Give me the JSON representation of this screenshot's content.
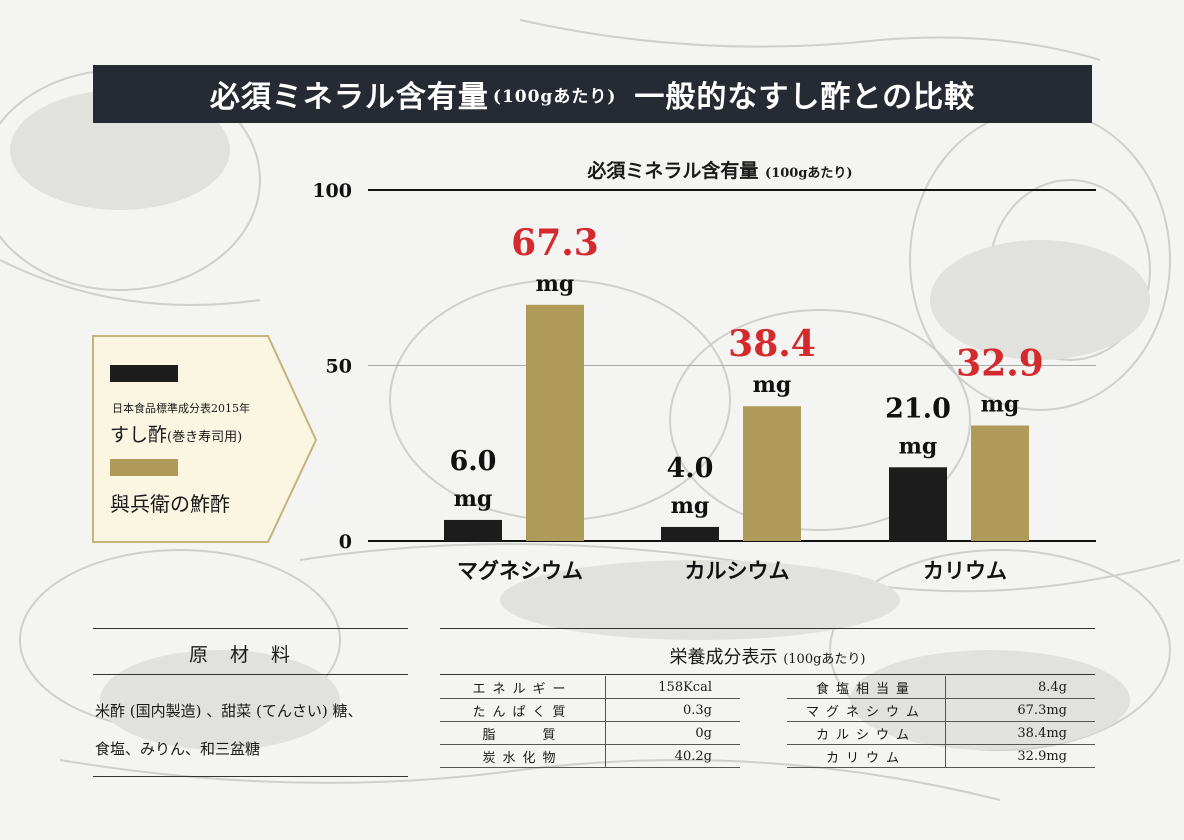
{
  "header": {
    "title_main": "必須ミネラル含有量",
    "title_unit": "(100gあたり)",
    "title_compare": "一般的なすし酢との比較"
  },
  "legend": {
    "series_a_source": "日本食品標準成分表2015年",
    "series_a_name": "すし酢",
    "series_a_note": "(巻き寿司用)",
    "series_b_name": "與兵衛の鮓酢",
    "colors": {
      "series_a": "#1c1c1c",
      "series_b": "#b09a5a",
      "highlight": "#d42a2e"
    }
  },
  "chart_data": {
    "type": "bar",
    "title": "必須ミネラル含有量",
    "title_unit": "(100gあたり)",
    "categories": [
      "マグネシウム",
      "カルシウム",
      "カリウム"
    ],
    "series": [
      {
        "name": "すし酢",
        "values": [
          6.0,
          4.0,
          21.0
        ],
        "labels": [
          "6.0",
          "4.0",
          "21.0"
        ]
      },
      {
        "name": "與兵衛の鮓酢",
        "values": [
          67.3,
          38.4,
          32.9
        ],
        "labels": [
          "67.3",
          "38.4",
          "32.9"
        ]
      }
    ],
    "value_unit": "mg",
    "ylim": [
      0,
      100
    ],
    "yticks": [
      0,
      50,
      100
    ],
    "grid": true
  },
  "ingredients": {
    "heading": "原材料",
    "lines": [
      "米酢 (国内製造) 、甜菜 (てんさい) 糖、",
      "食塩、みりん、和三盆糖"
    ]
  },
  "nutrition": {
    "heading": "栄養成分表示",
    "heading_unit": "(100gあたり)",
    "left": [
      {
        "k": "エネルギー",
        "v": "158Kcal"
      },
      {
        "k": "たんぱく質",
        "v": "0.3g"
      },
      {
        "k": "脂　　質",
        "v": "0g"
      },
      {
        "k": "炭水化物",
        "v": "40.2g"
      }
    ],
    "right": [
      {
        "k": "食塩相当量",
        "v": "8.4g"
      },
      {
        "k": "マグネシウム",
        "v": "67.3mg"
      },
      {
        "k": "カルシウム",
        "v": "38.4mg"
      },
      {
        "k": "カリウム",
        "v": "32.9mg"
      }
    ]
  }
}
